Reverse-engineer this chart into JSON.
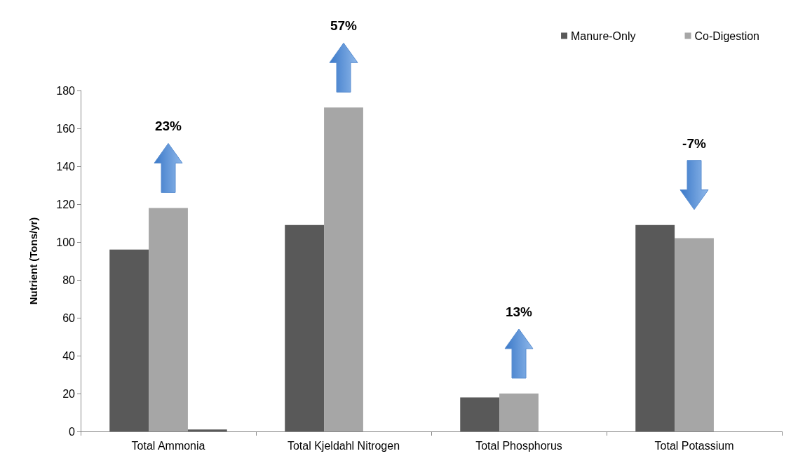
{
  "chart_data": {
    "type": "bar",
    "ylabel": "Nutrient (Tons/yr)",
    "categories": [
      "Total Ammonia",
      "Total Kjeldahl Nitrogen",
      "Total Phosphorus",
      "Total Potassium"
    ],
    "series": [
      {
        "name": "Manure-Only",
        "color": "#595959",
        "values": [
          96,
          109,
          18,
          109
        ]
      },
      {
        "name": "Co-Digestion",
        "color": "#a6a6a6",
        "values": [
          118,
          171,
          20,
          102
        ]
      },
      {
        "color": "#595959",
        "values": [
          1,
          null,
          null,
          null
        ]
      }
    ],
    "ylim": [
      0,
      180
    ],
    "yticks": [
      0,
      20,
      40,
      60,
      80,
      100,
      120,
      140,
      160,
      180
    ],
    "grid": false,
    "legend": "top right",
    "annotations": [
      "23%",
      "57%",
      "13%",
      "-7%"
    ]
  }
}
